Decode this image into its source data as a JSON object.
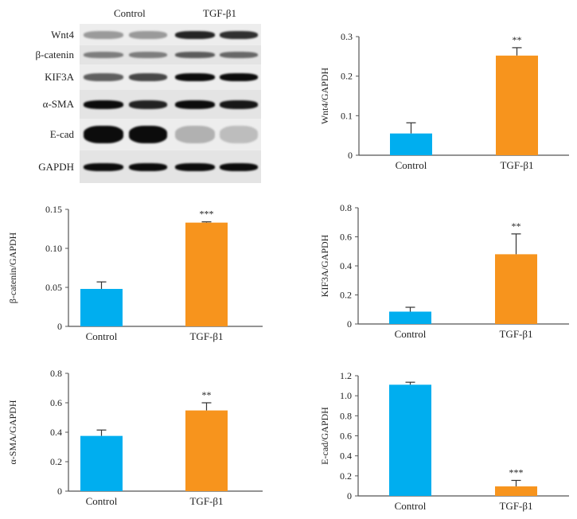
{
  "blot": {
    "groups": [
      "Control",
      "TGF-β1"
    ],
    "rows": [
      "Wnt4",
      "β-catenin",
      "KIF3A",
      "α-SMA",
      "E-cad",
      "GAPDH"
    ]
  },
  "colors": {
    "control": "#00aeef",
    "treatment": "#f7941d",
    "axis": "#555555"
  },
  "chart_data": [
    {
      "type": "bar",
      "title": "",
      "ylabel": "Wnt4/GAPDH",
      "categories": [
        "Control",
        "TGF-β1"
      ],
      "values": [
        0.055,
        0.252
      ],
      "errors": [
        0.027,
        0.02
      ],
      "significance": [
        "",
        "**"
      ],
      "ylim": [
        0,
        0.3
      ],
      "yticks": [
        0,
        0.1,
        0.2,
        0.3
      ],
      "ytick_labels": [
        "0",
        "0.1",
        "0.2",
        "0.3"
      ]
    },
    {
      "type": "bar",
      "title": "",
      "ylabel": "β-catenin/GAPDH",
      "categories": [
        "Control",
        "TGF-β1"
      ],
      "values": [
        0.048,
        0.133
      ],
      "errors": [
        0.009,
        0.001
      ],
      "significance": [
        "",
        "***"
      ],
      "ylim": [
        0,
        0.15
      ],
      "yticks": [
        0,
        0.05,
        0.1,
        0.15
      ],
      "ytick_labels": [
        "0",
        "0.05",
        "0.10",
        "0.15"
      ]
    },
    {
      "type": "bar",
      "title": "",
      "ylabel": "KIF3A/GAPDH",
      "categories": [
        "Control",
        "TGF-β1"
      ],
      "values": [
        0.085,
        0.48
      ],
      "errors": [
        0.03,
        0.14
      ],
      "significance": [
        "",
        "**"
      ],
      "ylim": [
        0,
        0.8
      ],
      "yticks": [
        0,
        0.2,
        0.4,
        0.6,
        0.8
      ],
      "ytick_labels": [
        "0",
        "0.2",
        "0.4",
        "0.6",
        "0.8"
      ]
    },
    {
      "type": "bar",
      "title": "",
      "ylabel": "α-SMA/GAPDH",
      "categories": [
        "Control",
        "TGF-β1"
      ],
      "values": [
        0.375,
        0.548
      ],
      "errors": [
        0.04,
        0.052
      ],
      "significance": [
        "",
        "**"
      ],
      "ylim": [
        0,
        0.8
      ],
      "yticks": [
        0,
        0.2,
        0.4,
        0.6,
        0.8
      ],
      "ytick_labels": [
        "0",
        "0.2",
        "0.4",
        "0.6",
        "0.8"
      ]
    },
    {
      "type": "bar",
      "title": "",
      "ylabel": "E-cad/GAPDH",
      "categories": [
        "Control",
        "TGF-β1"
      ],
      "values": [
        1.11,
        0.095
      ],
      "errors": [
        0.025,
        0.06
      ],
      "significance": [
        "",
        "***"
      ],
      "ylim": [
        0,
        1.2
      ],
      "yticks": [
        0,
        0.2,
        0.4,
        0.6,
        0.8,
        1.0,
        1.2
      ],
      "ytick_labels": [
        "0",
        "0.2",
        "0.4",
        "0.6",
        "0.8",
        "1.0",
        "1.2"
      ]
    }
  ]
}
